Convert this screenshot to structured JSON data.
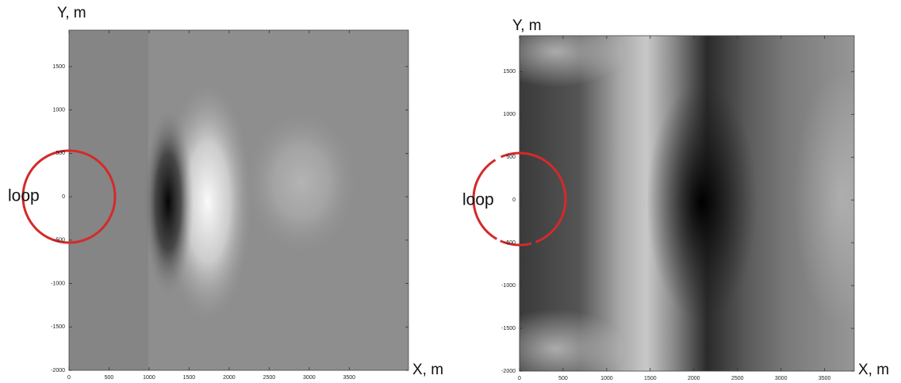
{
  "chart_data": [
    {
      "type": "heatmap",
      "y_label": "Y, m",
      "x_label": "X, m",
      "annotation": "loop",
      "xlim": [
        0,
        4240
      ],
      "ylim": [
        -2000,
        1920
      ],
      "xticks": [
        0,
        500,
        1000,
        1500,
        2000,
        2500,
        3000,
        3500
      ],
      "yticks": [
        -2000,
        -1500,
        -1000,
        -500,
        0,
        500,
        1000,
        1500
      ]
    },
    {
      "type": "heatmap",
      "y_label": "Y, m",
      "x_label": "X, m",
      "annotation": "loop",
      "xlim": [
        0,
        3840
      ],
      "ylim": [
        -2000,
        1920
      ],
      "xticks": [
        0,
        500,
        1000,
        1500,
        2000,
        2500,
        3000,
        3500
      ],
      "yticks": [
        -2000,
        -1500,
        -1000,
        -500,
        0,
        500,
        1000,
        1500
      ]
    }
  ]
}
